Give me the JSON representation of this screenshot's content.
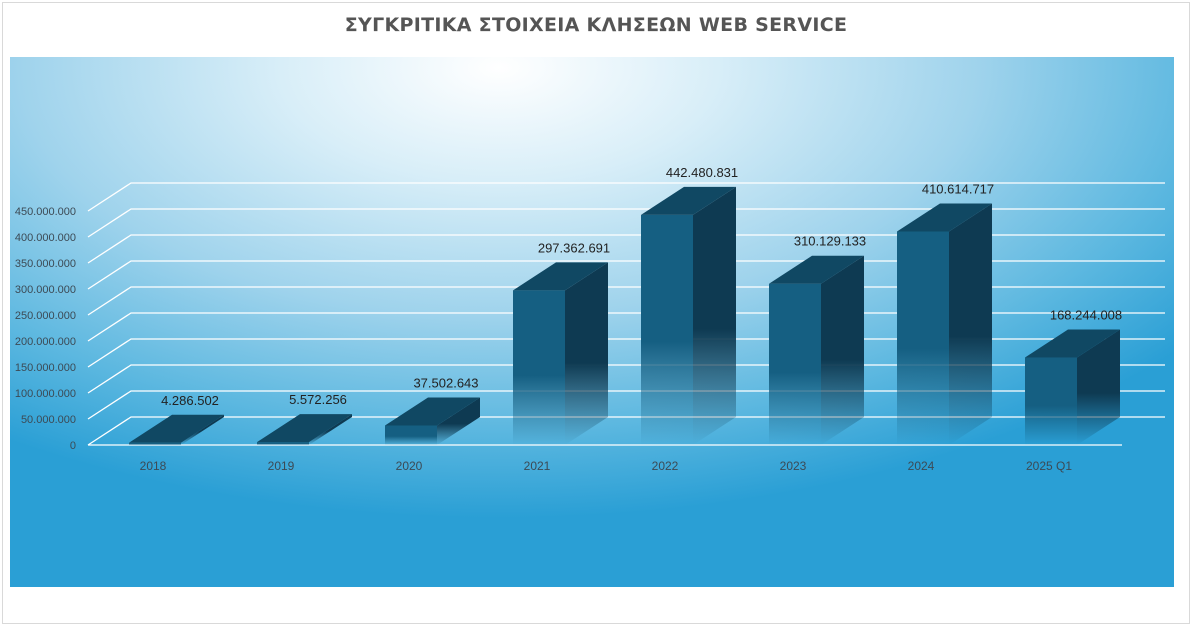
{
  "chart_data": {
    "type": "bar",
    "title": "ΣΥΓΚΡΙΤΙΚΑ ΣΤΟΙΧΕΙΑ ΚΛΗΣΕΩΝ WEB SERVICE",
    "xlabel": "",
    "ylabel": "",
    "categories": [
      "2018",
      "2019",
      "2020",
      "2021",
      "2022",
      "2023",
      "2024",
      "2025 Q1"
    ],
    "values": [
      4286502,
      5572256,
      37502643,
      297362691,
      442480831,
      310129133,
      410614717,
      168244008
    ],
    "data_labels": [
      "4.286.502",
      "5.572.256",
      "37.502.643",
      "297.362.691",
      "442.480.831",
      "310.129.133",
      "410.614.717",
      "168.244.008"
    ],
    "ylim": [
      0,
      450000000
    ],
    "y_ticks": [
      "0",
      "50.000.000",
      "100.000.000",
      "150.000.000",
      "200.000.000",
      "250.000.000",
      "300.000.000",
      "350.000.000",
      "400.000.000",
      "450.000.000"
    ],
    "grid": true,
    "style": "3d-column",
    "colors": {
      "bar_front": "#155f82",
      "bar_side": "#0e3a52",
      "bar_top": "#104863",
      "background": "#5db8e0"
    }
  }
}
